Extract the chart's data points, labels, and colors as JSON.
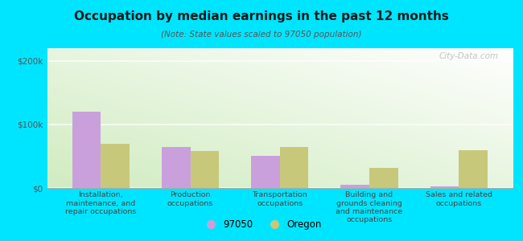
{
  "title": "Occupation by median earnings in the past 12 months",
  "subtitle": "(Note: State values scaled to 97050 population)",
  "categories": [
    "Installation,\nmaintenance, and\nrepair occupations",
    "Production\noccupations",
    "Transportation\noccupations",
    "Building and\ngrounds cleaning\nand maintenance\noccupations",
    "Sales and related\noccupations"
  ],
  "values_97050": [
    120000,
    65000,
    50000,
    5000,
    2000
  ],
  "values_oregon": [
    70000,
    58000,
    65000,
    32000,
    60000
  ],
  "color_97050": "#c9a0dc",
  "color_oregon": "#c8c87a",
  "ylim": [
    0,
    220000
  ],
  "yticks": [
    0,
    100000,
    200000
  ],
  "ytick_labels": [
    "$0",
    "$100k",
    "$200k"
  ],
  "background_color": "#00e5ff",
  "legend_label_97050": "97050",
  "legend_label_oregon": "Oregon",
  "watermark": "City-Data.com"
}
